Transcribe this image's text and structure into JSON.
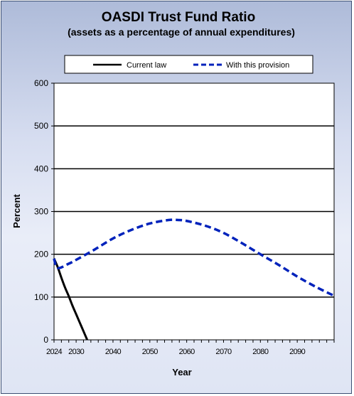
{
  "chart_data": {
    "type": "line",
    "title": "OASDI  Trust Fund Ratio",
    "subtitle": "(assets as a percentage of annual expenditures)",
    "xlabel": "Year",
    "ylabel": "Percent",
    "xlim": [
      2024,
      2100
    ],
    "ylim": [
      0,
      600
    ],
    "yticks": [
      0,
      100,
      200,
      300,
      400,
      500,
      600
    ],
    "xticks": [
      {
        "value": 2024,
        "label": "2024"
      },
      {
        "value": 2030,
        "label": "2030"
      },
      {
        "value": 2040,
        "label": "2040"
      },
      {
        "value": 2050,
        "label": "2050"
      },
      {
        "value": 2060,
        "label": "2060"
      },
      {
        "value": 2070,
        "label": "2070"
      },
      {
        "value": 2080,
        "label": "2080"
      },
      {
        "value": 2090,
        "label": "2090"
      }
    ],
    "grid": "horizontal",
    "legend_position": "top",
    "series": [
      {
        "name": "Current law",
        "color": "#000000",
        "style": "solid",
        "points": [
          [
            2024,
            190
          ],
          [
            2025,
            170
          ],
          [
            2026,
            145
          ],
          [
            2027,
            122
          ],
          [
            2028,
            102
          ],
          [
            2029,
            80
          ],
          [
            2030,
            60
          ],
          [
            2031,
            40
          ],
          [
            2032,
            20
          ],
          [
            2033,
            0
          ]
        ]
      },
      {
        "name": "With this provision",
        "color": "#0022bb",
        "style": "dashed",
        "points": [
          [
            2024,
            190
          ],
          [
            2025,
            168
          ],
          [
            2028,
            178
          ],
          [
            2030,
            187
          ],
          [
            2035,
            211
          ],
          [
            2040,
            237
          ],
          [
            2045,
            257
          ],
          [
            2050,
            272
          ],
          [
            2055,
            280
          ],
          [
            2058,
            280
          ],
          [
            2060,
            278
          ],
          [
            2065,
            267
          ],
          [
            2070,
            250
          ],
          [
            2075,
            226
          ],
          [
            2080,
            200
          ],
          [
            2085,
            175
          ],
          [
            2090,
            148
          ],
          [
            2095,
            124
          ],
          [
            2100,
            103
          ]
        ]
      }
    ]
  }
}
